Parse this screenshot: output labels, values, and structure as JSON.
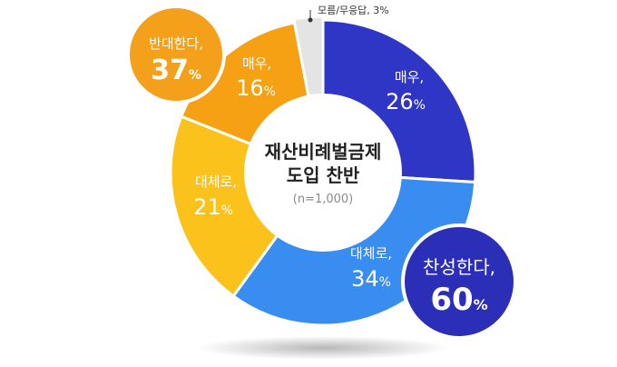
{
  "chart_data": {
    "type": "pie",
    "title": "재산비례벌금제 도입 찬반",
    "title_lines": [
      "재산비례벌금제",
      "도입 찬반"
    ],
    "subtitle": "(n=1,000)",
    "unit": "%",
    "slices": [
      {
        "label": "매우,",
        "value": 26,
        "color": "#2f35c4"
      },
      {
        "label": "대체로,",
        "value": 34,
        "color": "#3a8df0"
      },
      {
        "label": "대체로,",
        "value": 21,
        "color": "#fbc21c"
      },
      {
        "label": "매우,",
        "value": 16,
        "color": "#f5a113"
      },
      {
        "label": "모름/무응답,",
        "value": 3,
        "color": "#e4e4e4"
      }
    ],
    "groups": [
      {
        "label": "찬성한다,",
        "value": 60,
        "color": "#2b2fb8"
      },
      {
        "label": "반대한다,",
        "value": 37,
        "color": "#f5a01a"
      }
    ],
    "other_note": "모름/무응답, 3%"
  }
}
